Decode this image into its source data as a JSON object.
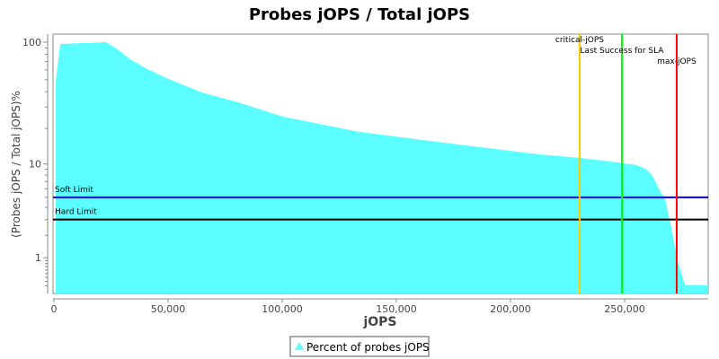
{
  "chart_data": {
    "type": "area",
    "title": "Probes jOPS / Total jOPS",
    "xlabel": "jOPS",
    "ylabel": "(Probes jOPS / Total jOPS)%",
    "yscale": "log",
    "xlim": [
      0,
      287000
    ],
    "ylim": [
      0.04,
      112
    ],
    "x_ticks": [
      0,
      50000,
      100000,
      150000,
      200000,
      250000
    ],
    "x_tick_labels": [
      "0",
      "50,000",
      "100,000",
      "150,000",
      "200,000",
      "250,000"
    ],
    "y_ticks": [
      1,
      10,
      100
    ],
    "y_tick_labels": [
      "1",
      "10",
      "100"
    ],
    "grid": false,
    "legend_position": "bottom",
    "series": [
      {
        "name": "Percent of probes jOPS",
        "color": "#5cffff",
        "x": [
          800,
          2800,
          22800,
          26800,
          33500,
          40200,
          50400,
          65000,
          80700,
          100400,
          133900,
          173200,
          212600,
          230300,
          244100,
          255100,
          259100,
          262200,
          265000,
          267700,
          269700,
          271700,
          273600,
          276400,
          286600
        ],
        "y": [
          49,
          96.7,
          100,
          90.5,
          72.9,
          61.8,
          50.6,
          39.4,
          32.8,
          25.0,
          18.7,
          15.0,
          12.1,
          11.3,
          10.5,
          9.8,
          9.1,
          7.9,
          6.0,
          4.8,
          3.0,
          1.64,
          0.76,
          0.22,
          0.21
        ]
      }
    ],
    "horizontal_markers": [
      {
        "label": "Soft Limit",
        "value": 5,
        "color": "#0000ff"
      },
      {
        "label": "Hard Limit",
        "value": 3,
        "color": "#000000"
      }
    ],
    "vertical_markers": [
      {
        "label": "critical-jOPS",
        "value": 230300,
        "color": "#ffc800"
      },
      {
        "label": "Last Success for SLA",
        "value": 248800,
        "color": "#00ff00"
      },
      {
        "label": "max-jOPS",
        "value": 272800,
        "color": "#ff0000"
      }
    ]
  }
}
